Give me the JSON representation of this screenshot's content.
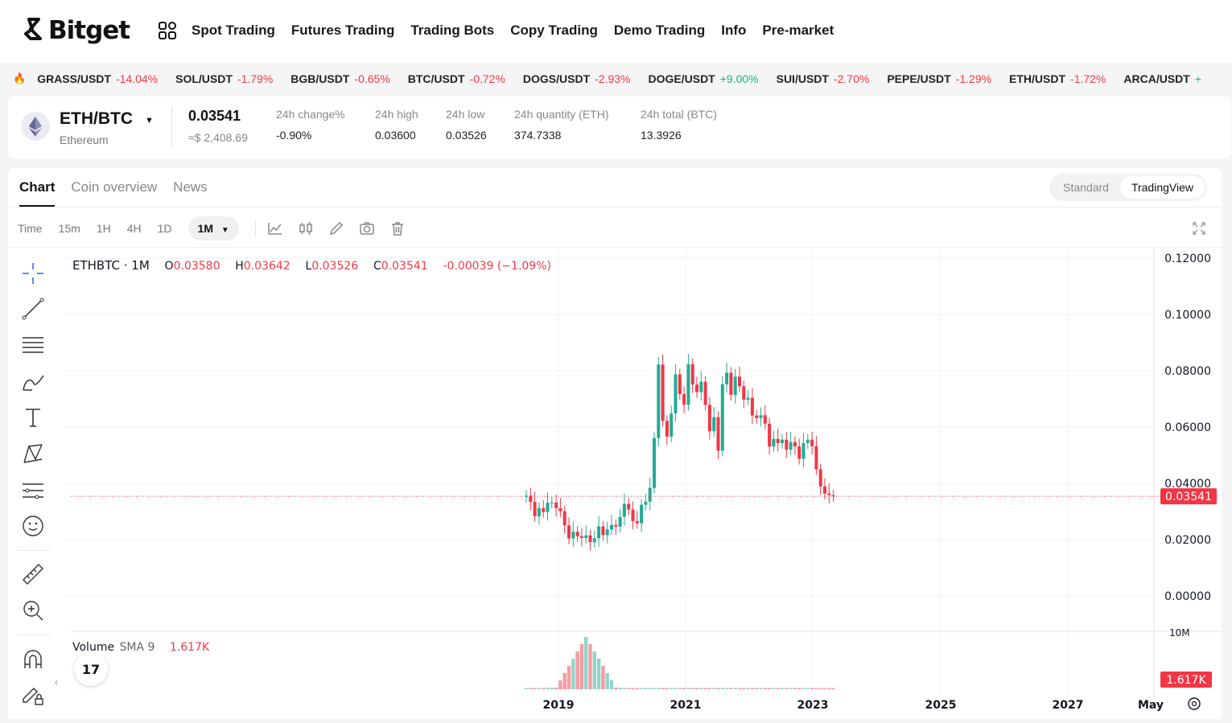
{
  "brand": {
    "name": "Bitget"
  },
  "nav": [
    "Spot Trading",
    "Futures Trading",
    "Trading Bots",
    "Copy Trading",
    "Demo Trading",
    "Info",
    "Pre-market"
  ],
  "ticker": [
    {
      "pair": "GRASS/USDT",
      "change": "-14.04%",
      "dir": "neg"
    },
    {
      "pair": "SOL/USDT",
      "change": "-1.79%",
      "dir": "neg"
    },
    {
      "pair": "BGB/USDT",
      "change": "-0.65%",
      "dir": "neg"
    },
    {
      "pair": "BTC/USDT",
      "change": "-0.72%",
      "dir": "neg"
    },
    {
      "pair": "DOGS/USDT",
      "change": "-2.93%",
      "dir": "neg"
    },
    {
      "pair": "DOGE/USDT",
      "change": "+9.00%",
      "dir": "pos"
    },
    {
      "pair": "SUI/USDT",
      "change": "-2.70%",
      "dir": "neg"
    },
    {
      "pair": "PEPE/USDT",
      "change": "-1.29%",
      "dir": "neg"
    },
    {
      "pair": "ETH/USDT",
      "change": "-1.72%",
      "dir": "neg"
    },
    {
      "pair": "ARCA/USDT",
      "change": "+",
      "dir": "pos"
    }
  ],
  "pair": {
    "symbol": "ETH/BTC",
    "name": "Ethereum",
    "price": "0.03541",
    "usd": "≈$ 2,408.69",
    "stats": [
      {
        "label": "24h change%",
        "value": "-0.90%",
        "dir": "neg"
      },
      {
        "label": "24h high",
        "value": "0.03600",
        "dir": ""
      },
      {
        "label": "24h low",
        "value": "0.03526",
        "dir": ""
      },
      {
        "label": "24h quantity (ETH)",
        "value": "374.7338",
        "dir": ""
      },
      {
        "label": "24h total (BTC)",
        "value": "13.3926",
        "dir": ""
      }
    ]
  },
  "tabs": [
    "Chart",
    "Coin overview",
    "News"
  ],
  "view_toggle": [
    "Standard",
    "TradingView"
  ],
  "timeframes": {
    "label": "Time",
    "items": [
      "15m",
      "1H",
      "4H",
      "1D"
    ],
    "selected": "1M"
  },
  "legend": {
    "symbol": "ETHBTC · 1M",
    "o_label": "O",
    "o": "0.03580",
    "h_label": "H",
    "h": "0.03642",
    "l_label": "L",
    "l": "0.03526",
    "c_label": "C",
    "c": "0.03541",
    "change": "-0.00039 (−1.09%)"
  },
  "volume_legend": {
    "label": "Volume",
    "sma": "SMA 9",
    "value": "1.617K"
  },
  "tv_logo": "17",
  "colors": {
    "up": "#22ab94",
    "down": "#f23645",
    "accent": "#f23a46"
  },
  "chart_data": {
    "type": "candlestick",
    "yticks": [
      "0.12000",
      "0.10000",
      "0.08000",
      "0.06000",
      "0.04000",
      "0.02000",
      "0.00000"
    ],
    "ylim": [
      0,
      0.12
    ],
    "xticks": [
      "2019",
      "2021",
      "2023",
      "2025",
      "2027",
      "May"
    ],
    "last_price_label": "0.03541",
    "volume_axis_label": "10M",
    "volume_label": "1.617K",
    "closes": [
      0.0356,
      0.0334,
      0.0283,
      0.0312,
      0.0298,
      0.0331,
      0.0332,
      0.0312,
      0.0301,
      0.0251,
      0.0204,
      0.0228,
      0.0212,
      0.0206,
      0.0215,
      0.0191,
      0.0205,
      0.0247,
      0.0216,
      0.0236,
      0.0252,
      0.0246,
      0.0281,
      0.0327,
      0.0307,
      0.0266,
      0.0258,
      0.0324,
      0.0335,
      0.0384,
      0.0561,
      0.0822,
      0.0622,
      0.0566,
      0.0648,
      0.0787,
      0.0717,
      0.0679,
      0.0823,
      0.0751,
      0.0724,
      0.0761,
      0.0679,
      0.0585,
      0.0635,
      0.0516,
      0.0752,
      0.0793,
      0.0714,
      0.0779,
      0.0745,
      0.0697,
      0.0704,
      0.0641,
      0.0632,
      0.0642,
      0.0612,
      0.0531,
      0.0558,
      0.0543,
      0.0555,
      0.052,
      0.0547,
      0.0531,
      0.0487,
      0.0543,
      0.0555,
      0.0532,
      0.045,
      0.0389,
      0.0364,
      0.0358,
      0.0354
    ]
  }
}
